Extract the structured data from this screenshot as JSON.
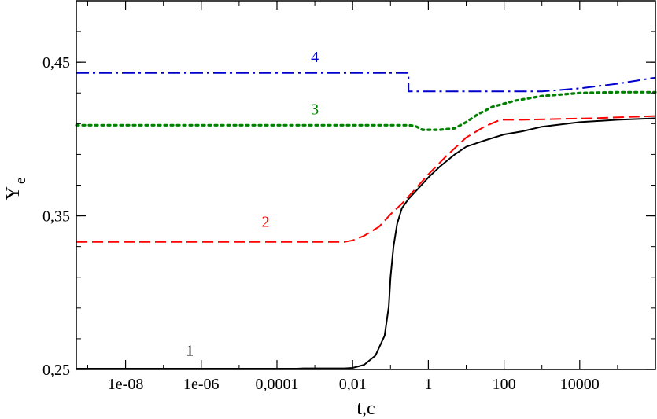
{
  "chart_data": {
    "type": "line",
    "xlabel": "t,c",
    "ylabel": "Y",
    "ylabel_sub": "e",
    "xscale": "log",
    "xlim": [
      5e-10,
      1000000.0
    ],
    "ylim": [
      0.25,
      0.49
    ],
    "grid": false,
    "x_tick_labels": [
      "1e-08",
      "1e-06",
      "0,0001",
      "0,01",
      "1",
      "100",
      "10000"
    ],
    "x_ticks": [
      1e-08,
      1e-06,
      0.0001,
      0.01,
      1,
      100,
      10000
    ],
    "y_tick_labels": [
      "0,25",
      "0,35",
      "0,45"
    ],
    "y_ticks": [
      0.25,
      0.35,
      0.45
    ],
    "series": [
      {
        "label": "1",
        "color": "#000000",
        "style": "solid",
        "points": [
          [
            5e-10,
            0.2505
          ],
          [
            0.00035,
            0.2505
          ],
          [
            0.0005,
            0.2507
          ],
          [
            0.006,
            0.2507
          ],
          [
            0.01,
            0.251
          ],
          [
            0.02,
            0.253
          ],
          [
            0.04,
            0.259
          ],
          [
            0.07,
            0.272
          ],
          [
            0.09,
            0.291
          ],
          [
            0.1,
            0.31
          ],
          [
            0.12,
            0.33
          ],
          [
            0.15,
            0.345
          ],
          [
            0.2,
            0.355
          ],
          [
            0.3,
            0.361
          ],
          [
            0.6,
            0.369
          ],
          [
            1,
            0.375
          ],
          [
            2,
            0.382
          ],
          [
            5,
            0.39
          ],
          [
            10,
            0.395
          ],
          [
            30,
            0.399
          ],
          [
            100,
            0.403
          ],
          [
            300,
            0.405
          ],
          [
            1000,
            0.408
          ],
          [
            10000,
            0.411
          ],
          [
            100000,
            0.4125
          ],
          [
            1000000.0,
            0.4135
          ]
        ]
      },
      {
        "label": "2",
        "color": "#ff0000",
        "style": "dashed",
        "points": [
          [
            5e-10,
            0.333
          ],
          [
            0.006,
            0.333
          ],
          [
            0.01,
            0.334
          ],
          [
            0.02,
            0.337
          ],
          [
            0.05,
            0.343
          ],
          [
            0.1,
            0.351
          ],
          [
            0.2,
            0.358
          ],
          [
            0.4,
            0.366
          ],
          [
            1,
            0.377
          ],
          [
            3,
            0.389
          ],
          [
            10,
            0.401
          ],
          [
            30,
            0.408
          ],
          [
            80,
            0.4125
          ],
          [
            300,
            0.4125
          ],
          [
            2000,
            0.413
          ],
          [
            20000,
            0.4135
          ],
          [
            1000000.0,
            0.415
          ]
        ]
      },
      {
        "label": "3",
        "color": "#008000",
        "style": "dotted",
        "points": [
          [
            5e-10,
            0.409
          ],
          [
            0.3,
            0.409
          ],
          [
            0.45,
            0.4085
          ],
          [
            0.7,
            0.406
          ],
          [
            2,
            0.406
          ],
          [
            5,
            0.407
          ],
          [
            10,
            0.411
          ],
          [
            20,
            0.416
          ],
          [
            50,
            0.421
          ],
          [
            200,
            0.425
          ],
          [
            1000,
            0.428
          ],
          [
            10000,
            0.43
          ],
          [
            100000,
            0.4305
          ],
          [
            1000000.0,
            0.4305
          ]
        ]
      },
      {
        "label": "4",
        "color": "#0000cc",
        "style": "dashdot",
        "points": [
          [
            5e-10,
            0.443
          ],
          [
            0.3,
            0.443
          ],
          [
            0.3,
            0.431
          ],
          [
            1000,
            0.431
          ],
          [
            10000,
            0.433
          ],
          [
            100000,
            0.436
          ],
          [
            1000000.0,
            0.44
          ]
        ]
      }
    ],
    "annotations": [
      {
        "text": "1",
        "x": 5e-07,
        "y": 0.259,
        "color": "#000000"
      },
      {
        "text": "2",
        "x": 5e-05,
        "y": 0.343,
        "color": "#ff0000"
      },
      {
        "text": "3",
        "x": 0.001,
        "y": 0.416,
        "color": "#008000"
      },
      {
        "text": "4",
        "x": 0.001,
        "y": 0.45,
        "color": "#0000cc"
      }
    ]
  }
}
